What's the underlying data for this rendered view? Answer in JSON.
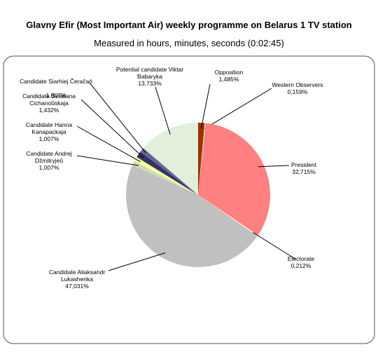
{
  "chart_data": {
    "type": "pie",
    "title": "Glavny Efir (Most Important Air) weekly programme on Belarus 1 TV station",
    "subtitle": "Measured in hours, minutes, seconds (0:02:45)",
    "categories": [
      "Opposition",
      "Western Observers",
      "President",
      "Electorate",
      "Candidate Aliaksandr Lukashenka",
      "Candidate Andrej Dźmitryjeŭ",
      "Candidate Hanna Kanapackaja",
      "Candidate Śviatlana Cichanoŭskaja",
      "Candidate Siarhiej Čeračań",
      "Potential candidate Viktar Babaryka"
    ],
    "values": [
      1.485,
      0.159,
      32.715,
      0.212,
      47.031,
      1.007,
      1.007,
      1.432,
      1.007,
      13.733
    ],
    "value_labels": [
      "1,485%",
      "0,159%",
      "32,715%",
      "0,212%",
      "47,031%",
      "1,007%",
      "1,007%",
      "1,432%",
      "1,007%",
      "13,733%"
    ],
    "colors": [
      "#993300",
      "#ffffcc",
      "#ff8080",
      "#ffffcc",
      "#c0c0c0",
      "#c6e0b4",
      "#ffff99",
      "#333366",
      "#666699",
      "#e2efda"
    ]
  }
}
